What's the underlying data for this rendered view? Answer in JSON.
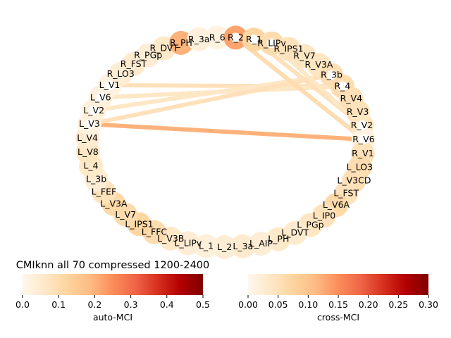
{
  "chart_data": {
    "type": "network",
    "title": "CMIknn all 70 compressed 1200-2400",
    "nodes": [
      {
        "label": "R_6",
        "auto": 0.02
      },
      {
        "label": "R_2",
        "auto": 0.22
      },
      {
        "label": "R_1",
        "auto": 0.12
      },
      {
        "label": "R_LIPv",
        "auto": 0.1
      },
      {
        "label": "R_IPS1",
        "auto": 0.08
      },
      {
        "label": "R_V7",
        "auto": 0.07
      },
      {
        "label": "R_V3A",
        "auto": 0.07
      },
      {
        "label": "R_3b",
        "auto": 0.09
      },
      {
        "label": "R_4",
        "auto": 0.1
      },
      {
        "label": "R_V4",
        "auto": 0.09
      },
      {
        "label": "R_V3",
        "auto": 0.08
      },
      {
        "label": "R_V2",
        "auto": 0.07
      },
      {
        "label": "R_V6",
        "auto": 0.02
      },
      {
        "label": "R_V1",
        "auto": 0.08
      },
      {
        "label": "L_LO3",
        "auto": 0.1
      },
      {
        "label": "L_V3CD",
        "auto": 0.09
      },
      {
        "label": "L_FST",
        "auto": 0.08
      },
      {
        "label": "L_V6A",
        "auto": 0.11
      },
      {
        "label": "L_IP0",
        "auto": 0.08
      },
      {
        "label": "L_PGp",
        "auto": 0.07
      },
      {
        "label": "L_DVT",
        "auto": 0.05
      },
      {
        "label": "L_PH",
        "auto": 0.06
      },
      {
        "label": "L_AIP",
        "auto": 0.04
      },
      {
        "label": "L_3a",
        "auto": 0.05
      },
      {
        "label": "L_2",
        "auto": 0.04
      },
      {
        "label": "L_1",
        "auto": 0.03
      },
      {
        "label": "L_LIPv",
        "auto": 0.04
      },
      {
        "label": "L_V3B",
        "auto": 0.06
      },
      {
        "label": "L_FFC",
        "auto": 0.1
      },
      {
        "label": "L_IPS1",
        "auto": 0.12
      },
      {
        "label": "L_V7",
        "auto": 0.1
      },
      {
        "label": "L_V3A",
        "auto": 0.11
      },
      {
        "label": "L_FEF",
        "auto": 0.08
      },
      {
        "label": "L_3b",
        "auto": 0.04
      },
      {
        "label": "L_4",
        "auto": 0.06
      },
      {
        "label": "L_V8",
        "auto": 0.07
      },
      {
        "label": "L_V4",
        "auto": 0.05
      },
      {
        "label": "L_V3",
        "auto": 0.02
      },
      {
        "label": "L_V2",
        "auto": 0.03
      },
      {
        "label": "L_V6",
        "auto": 0.03
      },
      {
        "label": "L_V1",
        "auto": 0.02
      },
      {
        "label": "R_LO3",
        "auto": 0.04
      },
      {
        "label": "R_FST",
        "auto": 0.05
      },
      {
        "label": "R_PGp",
        "auto": 0.04
      },
      {
        "label": "R_DVT",
        "auto": 0.06
      },
      {
        "label": "R_PH",
        "auto": 0.2
      },
      {
        "label": "R_3a",
        "auto": 0.03
      }
    ],
    "edges": [
      {
        "source": "L_V3",
        "target": "R_V6",
        "cross": 0.12
      },
      {
        "source": "L_V1",
        "target": "R_4",
        "cross": 0.05
      },
      {
        "source": "L_V6",
        "target": "R_4",
        "cross": 0.04
      },
      {
        "source": "L_V2",
        "target": "R_3b",
        "cross": 0.04
      },
      {
        "source": "L_V3",
        "target": "R_3b",
        "cross": 0.05
      },
      {
        "source": "R_1",
        "target": "R_V2",
        "cross": 0.05
      },
      {
        "source": "R_LIPv",
        "target": "R_V2",
        "cross": 0.04
      },
      {
        "source": "R_2",
        "target": "R_V6",
        "cross": 0.06
      }
    ],
    "colorbars": [
      {
        "label": "auto-MCI",
        "range": [
          0.0,
          0.5
        ],
        "ticks": [
          "0.0",
          "0.1",
          "0.2",
          "0.3",
          "0.4",
          "0.5"
        ]
      },
      {
        "label": "cross-MCI",
        "range": [
          0.0,
          0.3
        ],
        "ticks": [
          "0.00",
          "0.05",
          "0.10",
          "0.15",
          "0.20",
          "0.25",
          "0.30"
        ]
      }
    ],
    "colormap": "OrRd"
  }
}
